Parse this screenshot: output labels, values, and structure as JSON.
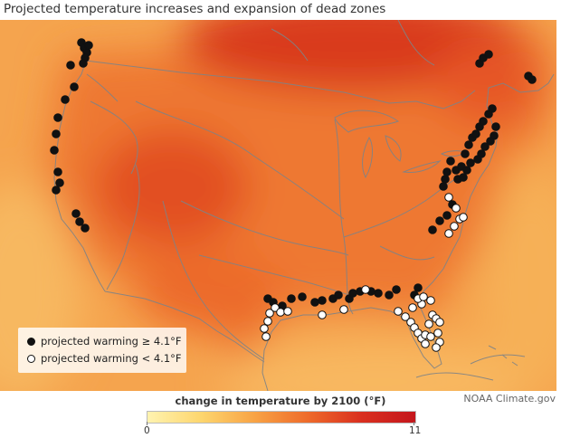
{
  "title": "Projected temperature increases and expansion of dead zones",
  "credit": "NOAA Climate.gov",
  "legend": {
    "filled_label": "projected warming ≥ 4.1°F",
    "open_label": "projected warming < 4.1°F"
  },
  "colorbar": {
    "title": "change in temperature by 2100 (°F)",
    "min_label": "0",
    "max_label": "11",
    "min_value": 0,
    "max_value": 11,
    "colors": [
      "#fff3b0",
      "#fdd66e",
      "#f8a345",
      "#ee6a2a",
      "#d92f1f",
      "#c4161c"
    ]
  },
  "colors": {
    "ocean": "#f7b25a",
    "land": "#ee7a32",
    "warm_core": "#d93a1f",
    "water": "#8a8a8a",
    "marker_filled": "#111111",
    "marker_open": "#ffffff"
  },
  "icons": [
    "filled-circle-marker",
    "open-circle-marker"
  ],
  "sites": {
    "filled": [
      [
        90,
        47
      ],
      [
        93,
        53
      ],
      [
        96,
        58
      ],
      [
        98,
        50
      ],
      [
        94,
        64
      ],
      [
        92,
        70
      ],
      [
        78,
        72
      ],
      [
        82,
        96
      ],
      [
        72,
        110
      ],
      [
        64,
        130
      ],
      [
        62,
        148
      ],
      [
        60,
        166
      ],
      [
        64,
        190
      ],
      [
        66,
        202
      ],
      [
        62,
        210
      ],
      [
        84,
        236
      ],
      [
        88,
        245
      ],
      [
        94,
        252
      ],
      [
        296,
        330
      ],
      [
        302,
        334
      ],
      [
        312,
        338
      ],
      [
        322,
        330
      ],
      [
        334,
        328
      ],
      [
        348,
        334
      ],
      [
        356,
        332
      ],
      [
        368,
        330
      ],
      [
        374,
        326
      ],
      [
        386,
        330
      ],
      [
        390,
        324
      ],
      [
        398,
        322
      ],
      [
        410,
        322
      ],
      [
        418,
        324
      ],
      [
        430,
        326
      ],
      [
        438,
        320
      ],
      [
        478,
        254
      ],
      [
        486,
        244
      ],
      [
        494,
        238
      ],
      [
        500,
        226
      ],
      [
        490,
        206
      ],
      [
        492,
        198
      ],
      [
        494,
        190
      ],
      [
        498,
        178
      ],
      [
        504,
        188
      ],
      [
        506,
        198
      ],
      [
        510,
        184
      ],
      [
        514,
        170
      ],
      [
        518,
        160
      ],
      [
        522,
        152
      ],
      [
        526,
        148
      ],
      [
        530,
        140
      ],
      [
        534,
        134
      ],
      [
        540,
        126
      ],
      [
        544,
        120
      ],
      [
        546,
        150
      ],
      [
        548,
        140
      ],
      [
        542,
        156
      ],
      [
        536,
        162
      ],
      [
        532,
        170
      ],
      [
        528,
        176
      ],
      [
        520,
        180
      ],
      [
        516,
        188
      ],
      [
        512,
        196
      ],
      [
        530,
        70
      ],
      [
        534,
        64
      ],
      [
        540,
        60
      ],
      [
        584,
        84
      ],
      [
        588,
        88
      ],
      [
        462,
        318
      ],
      [
        458,
        326
      ]
    ],
    "open": [
      [
        296,
        355
      ],
      [
        292,
        363
      ],
      [
        294,
        372
      ],
      [
        298,
        346
      ],
      [
        304,
        340
      ],
      [
        310,
        345
      ],
      [
        318,
        344
      ],
      [
        356,
        348
      ],
      [
        380,
        342
      ],
      [
        440,
        344
      ],
      [
        448,
        350
      ],
      [
        454,
        356
      ],
      [
        458,
        362
      ],
      [
        462,
        368
      ],
      [
        466,
        374
      ],
      [
        470,
        370
      ],
      [
        474,
        358
      ],
      [
        478,
        348
      ],
      [
        482,
        352
      ],
      [
        486,
        356
      ],
      [
        484,
        368
      ],
      [
        486,
        378
      ],
      [
        482,
        384
      ],
      [
        476,
        372
      ],
      [
        470,
        380
      ],
      [
        466,
        336
      ],
      [
        462,
        330
      ],
      [
        468,
        328
      ],
      [
        476,
        332
      ],
      [
        456,
        340
      ],
      [
        496,
        258
      ],
      [
        502,
        250
      ],
      [
        508,
        242
      ],
      [
        512,
        240
      ],
      [
        504,
        230
      ],
      [
        496,
        218
      ],
      [
        404,
        320
      ]
    ]
  }
}
